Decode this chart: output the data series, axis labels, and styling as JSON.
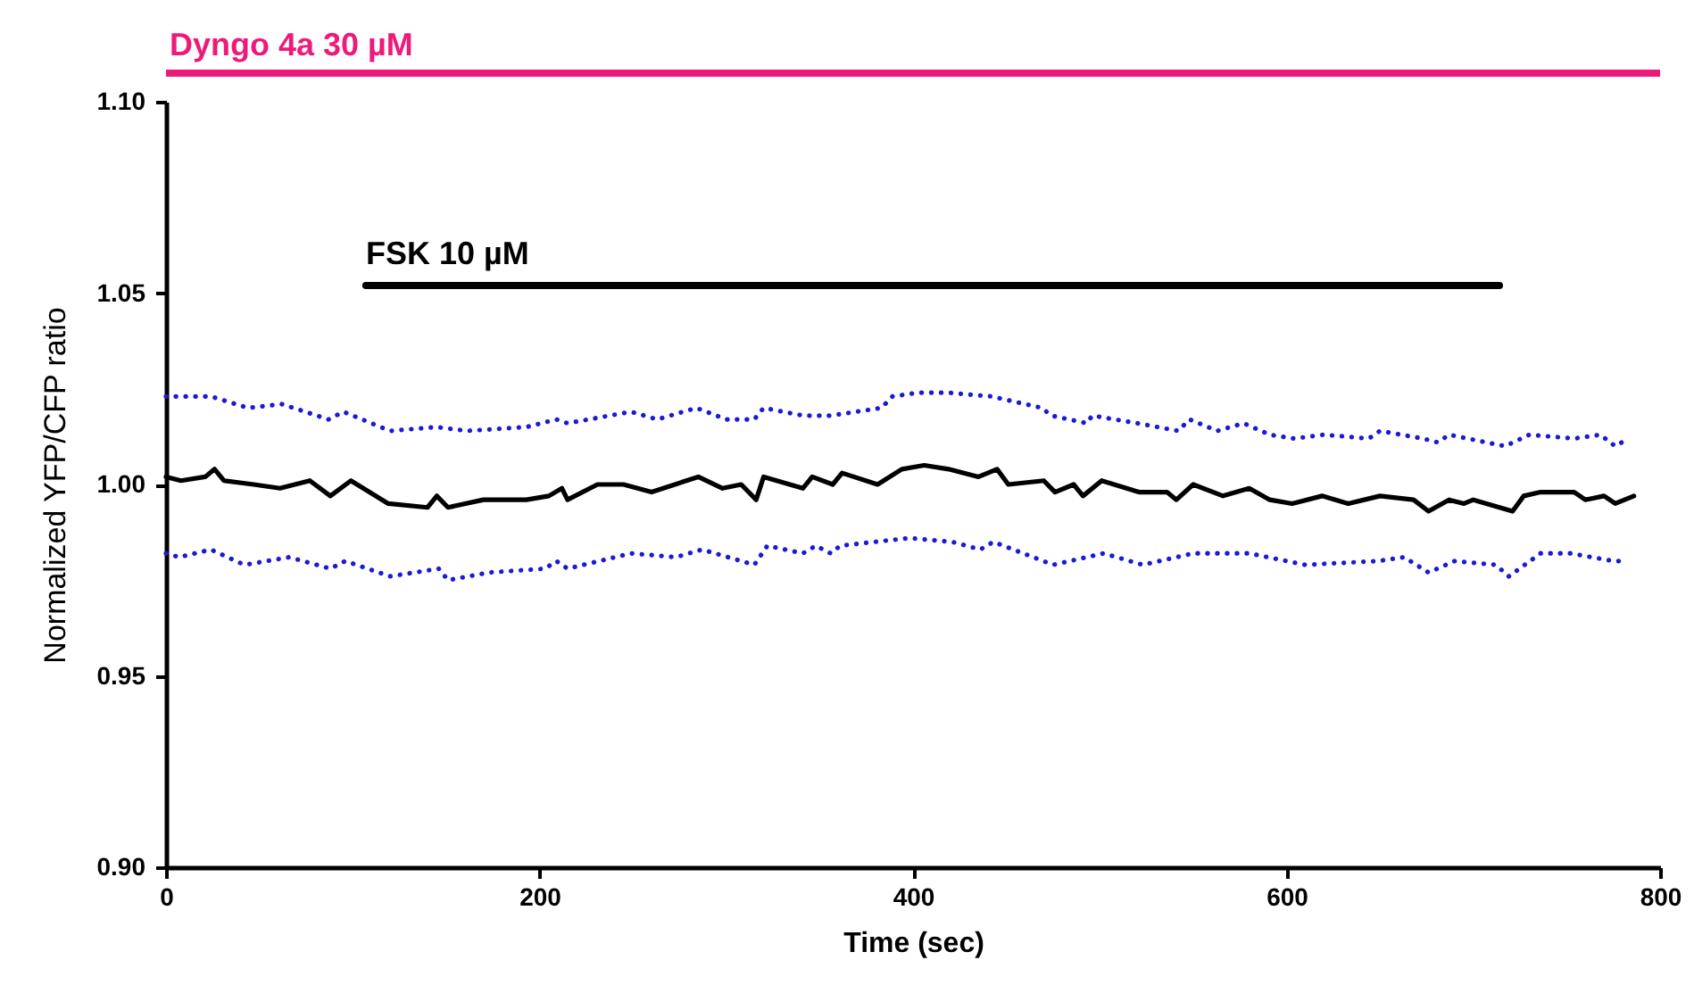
{
  "chart_data": {
    "type": "line",
    "xlabel": "Time (sec)",
    "ylabel": "Normalized YFP/CFP ratio",
    "xlim": [
      0,
      800
    ],
    "xticks": [
      0,
      200,
      400,
      600,
      800
    ],
    "ylim": [
      0.9,
      1.1
    ],
    "yticks": [
      {
        "value": 0.9,
        "label": "0.90"
      },
      {
        "value": 0.95,
        "label": "0.95"
      },
      {
        "value": 1.0,
        "label": "1.00"
      },
      {
        "value": 1.05,
        "label": "1.05"
      },
      {
        "value": 1.1,
        "label": "1.10"
      }
    ],
    "grid": false,
    "annotations": [
      "Dyngo 4a 30 µM"
    ],
    "series": [
      {
        "color": "#000000",
        "line_style": "solid",
        "x": [
          0,
          8,
          21,
          26,
          31,
          47,
          61,
          77,
          88,
          99,
          119,
          140,
          145,
          151,
          170,
          193,
          205,
          212,
          215,
          231,
          245,
          260,
          285,
          298,
          308,
          316,
          320,
          341,
          346,
          357,
          362,
          381,
          394,
          406,
          419,
          435,
          445,
          451,
          470,
          476,
          486,
          491,
          501,
          521,
          536,
          541,
          550,
          566,
          580,
          591,
          603,
          619,
          633,
          650,
          668,
          676,
          687,
          695,
          700,
          721,
          727,
          736,
          754,
          760,
          770,
          776,
          786
        ],
        "values": [
          1.002,
          1.001,
          1.002,
          1.004,
          1.001,
          1.0,
          0.999,
          1.001,
          0.997,
          1.001,
          0.995,
          0.994,
          0.997,
          0.994,
          0.996,
          0.996,
          0.997,
          0.999,
          0.996,
          1.0,
          1.0,
          0.998,
          1.002,
          0.999,
          1.0,
          0.996,
          1.002,
          0.999,
          1.002,
          1.0,
          1.003,
          1.0,
          1.004,
          1.005,
          1.004,
          1.002,
          1.004,
          1.0,
          1.001,
          0.998,
          1.0,
          0.997,
          1.001,
          0.998,
          0.998,
          0.996,
          1.0,
          0.997,
          0.999,
          0.996,
          0.995,
          0.997,
          0.995,
          0.997,
          0.996,
          0.993,
          0.996,
          0.995,
          0.996,
          0.993,
          0.997,
          0.998,
          0.998,
          0.996,
          0.997,
          0.995,
          0.997
        ]
      },
      {
        "color": "#1a1ad6",
        "line_style": "dotted",
        "x": [
          0,
          24,
          44,
          62,
          87,
          95,
          120,
          145,
          161,
          193,
          209,
          215,
          249,
          263,
          284,
          300,
          315,
          320,
          341,
          356,
          383,
          389,
          403,
          418,
          442,
          469,
          474,
          493,
          496,
          520,
          542,
          548,
          563,
          577,
          591,
          604,
          620,
          644,
          650,
          673,
          681,
          687,
          717,
          730,
          754,
          768,
          776,
          783
        ],
        "values": [
          1.023,
          1.023,
          1.02,
          1.021,
          1.017,
          1.019,
          1.014,
          1.015,
          1.014,
          1.015,
          1.017,
          1.016,
          1.019,
          1.017,
          1.02,
          1.017,
          1.017,
          1.02,
          1.018,
          1.018,
          1.02,
          1.023,
          1.024,
          1.024,
          1.023,
          1.02,
          1.018,
          1.016,
          1.018,
          1.016,
          1.014,
          1.017,
          1.014,
          1.016,
          1.013,
          1.012,
          1.013,
          1.012,
          1.014,
          1.012,
          1.011,
          1.013,
          1.01,
          1.013,
          1.012,
          1.013,
          1.01,
          1.012
        ]
      },
      {
        "color": "#1a1ad6",
        "line_style": "dotted",
        "x": [
          0,
          7,
          24,
          42,
          66,
          88,
          96,
          120,
          146,
          151,
          173,
          203,
          209,
          215,
          249,
          273,
          287,
          301,
          315,
          322,
          341,
          348,
          356,
          361,
          398,
          421,
          436,
          443,
          475,
          502,
          523,
          550,
          580,
          610,
          649,
          663,
          676,
          690,
          712,
          719,
          736,
          752,
          775,
          782
        ],
        "values": [
          0.982,
          0.981,
          0.983,
          0.979,
          0.981,
          0.978,
          0.98,
          0.976,
          0.978,
          0.975,
          0.977,
          0.978,
          0.98,
          0.978,
          0.982,
          0.981,
          0.983,
          0.981,
          0.979,
          0.984,
          0.982,
          0.984,
          0.982,
          0.984,
          0.986,
          0.985,
          0.983,
          0.985,
          0.979,
          0.982,
          0.979,
          0.982,
          0.982,
          0.979,
          0.98,
          0.981,
          0.977,
          0.98,
          0.979,
          0.976,
          0.982,
          0.982,
          0.98,
          0.98
        ]
      },
      {
        "name": "FSK 10 µM",
        "color": "#000000",
        "line_style": "solid",
        "x": [
          107,
          714
        ],
        "values": [
          1.052,
          1.052
        ]
      }
    ]
  }
}
